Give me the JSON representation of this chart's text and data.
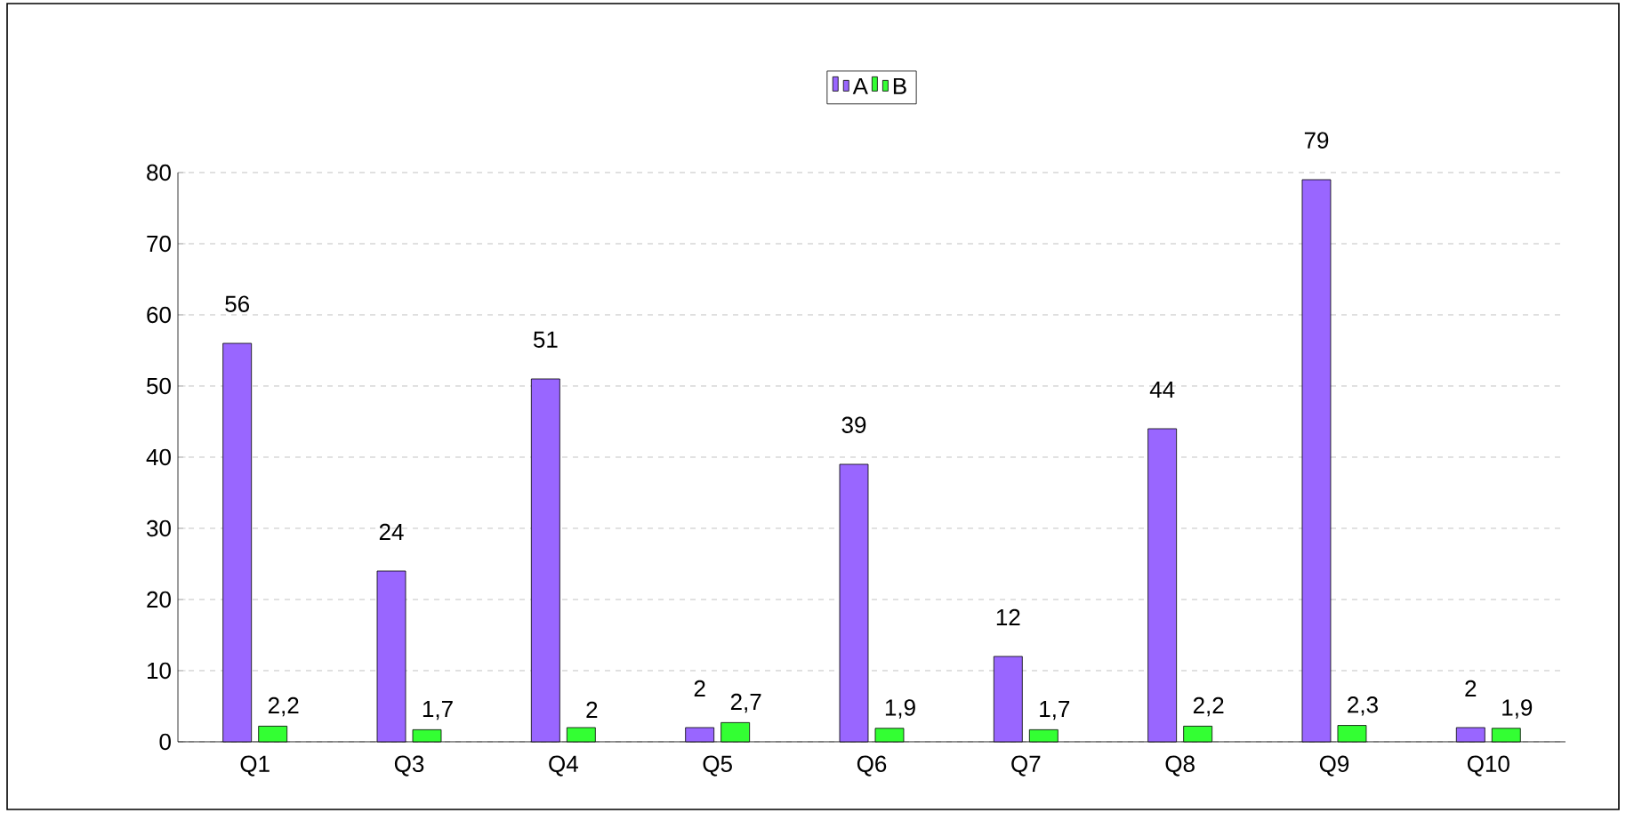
{
  "chart_data": {
    "type": "bar",
    "categories": [
      "Q1",
      "Q3",
      "Q4",
      "Q5",
      "Q6",
      "Q7",
      "Q8",
      "Q9",
      "Q10"
    ],
    "series": [
      {
        "name": "A",
        "color": "#9966ff",
        "values": [
          56,
          24,
          51,
          2,
          39,
          12,
          44,
          79,
          2
        ],
        "value_labels": [
          "56",
          "24",
          "51",
          "2",
          "39",
          "12",
          "44",
          "79",
          "2"
        ]
      },
      {
        "name": "B",
        "color": "#33ff33",
        "values": [
          2.2,
          1.7,
          2,
          2.7,
          1.9,
          1.7,
          2.2,
          2.3,
          1.9
        ],
        "value_labels": [
          "2,2",
          "1,7",
          "2",
          "2,7",
          "1,9",
          "1,7",
          "2,2",
          "2,3",
          "1,9"
        ]
      }
    ],
    "ylim": [
      0,
      80
    ],
    "yticks": [
      0,
      10,
      20,
      30,
      40,
      50,
      60,
      70,
      80
    ],
    "grid": "y",
    "legend": "top"
  }
}
